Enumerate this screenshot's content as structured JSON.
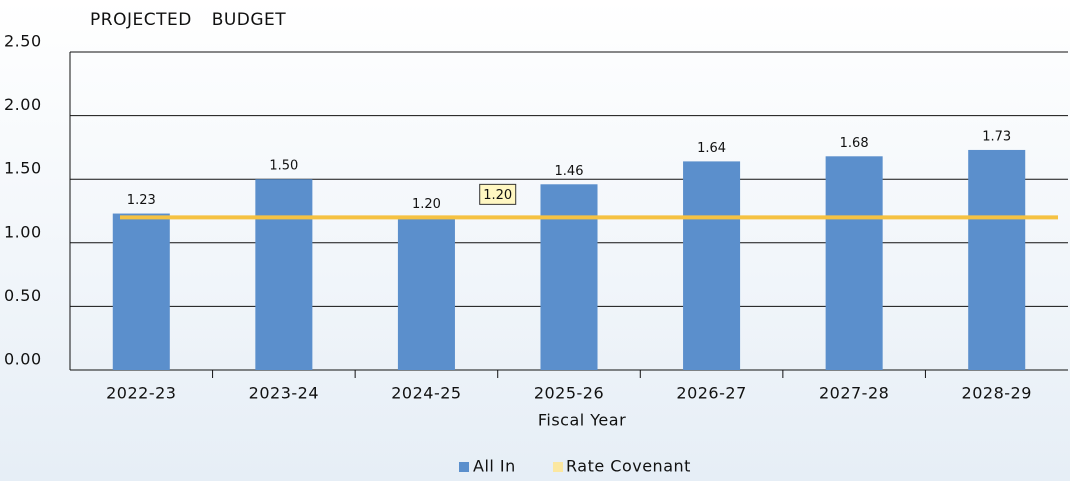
{
  "chart_data": {
    "type": "bar",
    "title": "PROJECTED BUDGET",
    "x_label": "Fiscal Year",
    "categories": [
      "2022-23",
      "2023-24",
      "2024-25",
      "2025-26",
      "2026-27",
      "2027-28",
      "2028-29"
    ],
    "series": [
      {
        "name": "All In",
        "color": "#5b8fcc",
        "values": [
          1.23,
          1.5,
          1.2,
          1.46,
          1.64,
          1.68,
          1.73
        ],
        "value_labels": [
          "1.23",
          "1.50",
          "1.20",
          "1.46",
          "1.64",
          "1.68",
          "1.73"
        ]
      }
    ],
    "reference_line": {
      "name": "Rate Covenant",
      "value": 1.2,
      "label": "1.20",
      "color": "#f5c242"
    },
    "ylim": [
      0,
      2.5
    ],
    "yticks": [
      {
        "value": 0,
        "label": "0.00"
      },
      {
        "value": 0.5,
        "label": "0.50"
      },
      {
        "value": 1,
        "label": "1.00"
      },
      {
        "value": 1.5,
        "label": "1.50"
      },
      {
        "value": 2,
        "label": "2.00"
      },
      {
        "value": 2.5,
        "label": "2.50"
      }
    ],
    "grid": true
  }
}
